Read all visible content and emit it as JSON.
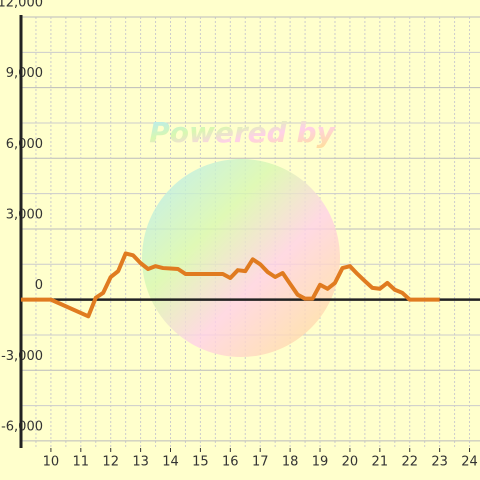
{
  "chart_data": {
    "type": "line",
    "watermark": "Powered by",
    "x": [
      9,
      10,
      11.25,
      11.5,
      11.75,
      12,
      12.25,
      12.5,
      12.75,
      13,
      13.25,
      13.5,
      13.75,
      14,
      14.25,
      14.5,
      14.75,
      15,
      15.25,
      15.5,
      15.75,
      16,
      16.25,
      16.5,
      16.75,
      17,
      17.25,
      17.5,
      17.75,
      18,
      18.25,
      18.5,
      18.75,
      19,
      19.25,
      19.5,
      19.75,
      20,
      20.25,
      20.5,
      20.75,
      21,
      21.25,
      21.5,
      21.75,
      22,
      23
    ],
    "series": [
      {
        "color": "#e07b20",
        "values": [
          0,
          0,
          -710,
          80,
          290,
          960,
          1210,
          1960,
          1880,
          1550,
          1300,
          1420,
          1340,
          1320,
          1300,
          1090,
          1090,
          1090,
          1090,
          1090,
          1090,
          920,
          1250,
          1210,
          1710,
          1500,
          1170,
          960,
          1130,
          670,
          210,
          40,
          40,
          630,
          460,
          710,
          1340,
          1420,
          1090,
          790,
          500,
          460,
          710,
          420,
          290,
          0,
          0
        ]
      }
    ],
    "xlim": [
      9,
      24.35
    ],
    "ylim": [
      -6300,
      12000
    ],
    "xticks": [
      10,
      11,
      12,
      13,
      14,
      15,
      16,
      17,
      18,
      19,
      20,
      21,
      22,
      23,
      24
    ],
    "yticks": [
      {
        "value": -6000,
        "label": "-6,000"
      },
      {
        "value": -3000,
        "label": "-3,000"
      },
      0,
      {
        "value": 3000,
        "label": "3,000"
      },
      {
        "value": 6000,
        "label": "6,000"
      },
      {
        "value": 9000,
        "label": "9,000"
      },
      {
        "value": 12000,
        "label": "12,000"
      }
    ],
    "grid": true
  }
}
